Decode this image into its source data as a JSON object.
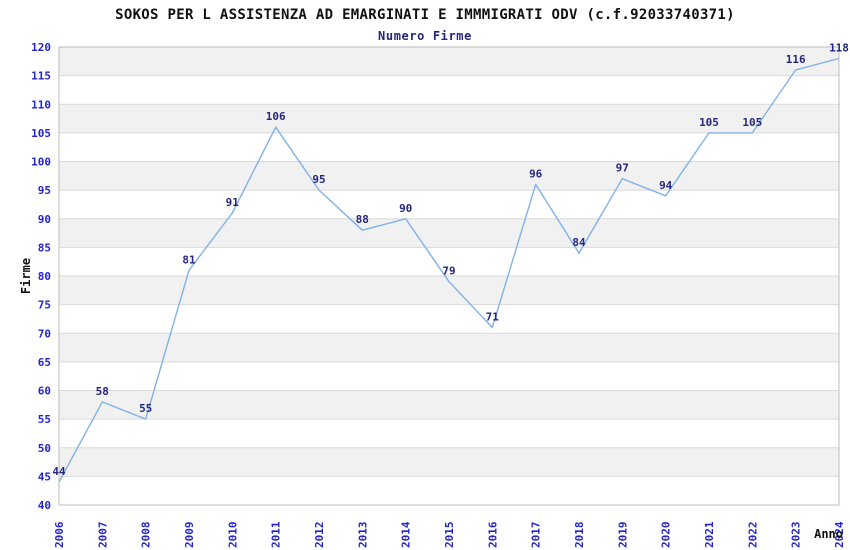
{
  "chart_data": {
    "type": "line",
    "title": "SOKOS PER L ASSISTENZA AD EMARGINATI E IMMMIGRATI ODV (c.f.92033740371)",
    "subtitle": "Numero Firme",
    "xlabel": "Anno",
    "ylabel": "Firme",
    "categories": [
      "2006",
      "2007",
      "2008",
      "2009",
      "2010",
      "2011",
      "2012",
      "2013",
      "2014",
      "2015",
      "2016",
      "2017",
      "2018",
      "2019",
      "2020",
      "2021",
      "2022",
      "2023",
      "2024"
    ],
    "series": [
      {
        "name": "Numero Firme",
        "values": [
          44,
          58,
          55,
          81,
          91,
          106,
          95,
          88,
          90,
          79,
          71,
          96,
          84,
          97,
          94,
          105,
          105,
          116,
          118
        ]
      }
    ],
    "ylim": [
      40,
      120
    ],
    "ytick_step": 5,
    "grid": "horizontal",
    "band_fill": "alternating",
    "legend_position": "none",
    "point_labels_visible": true,
    "colors": {
      "line": "#7FB2E8",
      "tick_label": "#2424CE",
      "data_label": "#26267F",
      "axis_title": "#111111",
      "band_gray": "#F1F1F1",
      "gridline": "#DADADA",
      "plot_border": "#BDBDBD",
      "background": "#FFFFFF"
    }
  }
}
